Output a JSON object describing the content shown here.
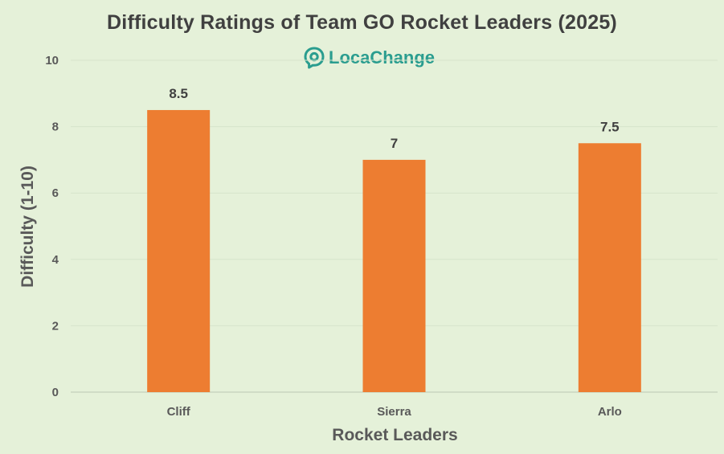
{
  "colors": {
    "background": "#e5f1d9",
    "bar": "#ed7d31",
    "title": "#404040",
    "axis_text": "#595959",
    "brand": "#2a9d8f",
    "grid": "#d6e4cb"
  },
  "brand": {
    "name": "LocaChange",
    "icon": "location-pin-icon"
  },
  "chart_data": {
    "type": "bar",
    "title": "Difficulty Ratings of Team GO Rocket Leaders (2025)",
    "xlabel": "Rocket Leaders",
    "ylabel": "Difficulty (1-10)",
    "categories": [
      "Cliff",
      "Sierra",
      "Arlo"
    ],
    "values": [
      8.5,
      7,
      7.5
    ],
    "data_labels": [
      "8.5",
      "7",
      "7.5"
    ],
    "ylim": [
      0,
      10
    ],
    "yticks": [
      "0",
      "2",
      "4",
      "6",
      "8",
      "10"
    ],
    "grid": true,
    "legend": "none"
  }
}
